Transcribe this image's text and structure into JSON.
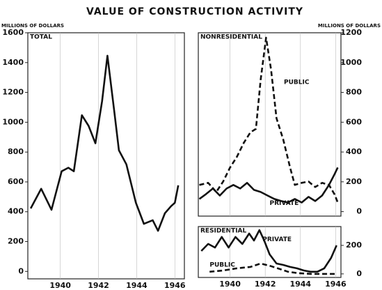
{
  "title": "VALUE OF CONSTRUCTION ACTIVITY",
  "chart_data": [
    {
      "type": "line",
      "title": "TOTAL",
      "y_label": "MILLIONS OF DOLLARS",
      "yaxis_side": "left",
      "grid": "x",
      "color": "#111111",
      "xlim": [
        1938.3,
        1946.5
      ],
      "xticks": [
        1940,
        1942,
        1944,
        1946
      ],
      "ylim": [
        -50,
        1600
      ],
      "yticks": [
        0,
        200,
        400,
        600,
        800,
        1000,
        1200,
        1400,
        1600
      ],
      "series": [
        {
          "name": "TOTAL",
          "color": "#111111",
          "line_style": "solid",
          "x": [
            1938.45,
            1939.0,
            1939.54,
            1940.07,
            1940.42,
            1940.71,
            1941.13,
            1941.48,
            1941.84,
            1942.19,
            1942.47,
            1942.83,
            1943.07,
            1943.46,
            1943.96,
            1944.38,
            1944.84,
            1945.12,
            1945.48,
            1945.8,
            1946.0,
            1946.18
          ],
          "values": [
            422,
            554,
            413,
            671,
            695,
            671,
            1047,
            976,
            859,
            1141,
            1446,
            1070,
            812,
            718,
            460,
            319,
            343,
            272,
            390,
            437,
            460,
            577
          ]
        }
      ]
    },
    {
      "type": "line",
      "title": "NONRESIDENTIAL",
      "y_label": "MILLIONS OF DOLLARS",
      "yaxis_side": "right",
      "grid": "x",
      "color": "#111111",
      "xlim": [
        1938.2,
        1946.3
      ],
      "xticks": [
        1940,
        1942,
        1944,
        1946
      ],
      "ylim": [
        -30,
        1200
      ],
      "yticks": [
        0,
        200,
        400,
        600,
        800,
        1000,
        1200
      ],
      "series": [
        {
          "name": "PUBLIC",
          "color": "#111111",
          "line_style": "dashed",
          "x": [
            1938.26,
            1938.76,
            1939.22,
            1939.61,
            1940.0,
            1940.39,
            1940.78,
            1941.16,
            1941.47,
            1941.74,
            1942.05,
            1942.33,
            1942.64,
            1943.02,
            1943.41,
            1943.68,
            1944.07,
            1944.46,
            1944.84,
            1945.23,
            1945.62,
            1945.93,
            1946.12
          ],
          "values": [
            179,
            193,
            132,
            202,
            296,
            367,
            461,
            532,
            555,
            885,
            1167,
            955,
            626,
            485,
            296,
            179,
            193,
            202,
            165,
            193,
            179,
            118,
            61
          ]
        },
        {
          "name": "PRIVATE",
          "color": "#111111",
          "line_style": "solid",
          "x": [
            1938.26,
            1938.64,
            1939.03,
            1939.42,
            1939.81,
            1940.19,
            1940.58,
            1940.97,
            1941.36,
            1941.74,
            1942.13,
            1942.52,
            1942.91,
            1943.29,
            1943.68,
            1944.07,
            1944.46,
            1944.84,
            1945.23,
            1945.62,
            1945.93,
            1946.12
          ],
          "values": [
            85,
            118,
            155,
            108,
            155,
            179,
            155,
            193,
            146,
            132,
            108,
            85,
            71,
            61,
            85,
            61,
            99,
            71,
            108,
            179,
            249,
            296
          ]
        }
      ]
    },
    {
      "type": "line",
      "title": "RESIDENTIAL",
      "yaxis_side": "right",
      "grid": "x",
      "color": "#111111",
      "xlim": [
        1938.2,
        1946.3
      ],
      "xticks": [
        1940,
        1942,
        1944,
        1946
      ],
      "ylim": [
        -25,
        332
      ],
      "yticks": [
        0,
        200
      ],
      "series": [
        {
          "name": "PRIVATE",
          "color": "#111111",
          "line_style": "solid",
          "x": [
            1938.37,
            1938.76,
            1939.15,
            1939.53,
            1939.92,
            1940.31,
            1940.7,
            1941.09,
            1941.36,
            1941.67,
            1941.94,
            1942.25,
            1942.64,
            1943.02,
            1943.41,
            1943.8,
            1944.19,
            1944.57,
            1944.96,
            1945.35,
            1945.74,
            1946.05
          ],
          "values": [
            161,
            210,
            185,
            259,
            185,
            259,
            210,
            283,
            234,
            307,
            234,
            137,
            73,
            63,
            49,
            39,
            24,
            15,
            15,
            39,
            112,
            200
          ]
        },
        {
          "name": "PUBLIC",
          "color": "#111111",
          "line_style": "dashed",
          "x": [
            1938.84,
            1939.61,
            1940.39,
            1941.16,
            1941.74,
            1942.33,
            1942.71,
            1943.29,
            1943.88,
            1944.65,
            1945.43,
            1946.05
          ],
          "values": [
            15,
            24,
            39,
            49,
            73,
            54,
            39,
            15,
            5,
            0,
            0,
            0
          ]
        }
      ]
    }
  ]
}
